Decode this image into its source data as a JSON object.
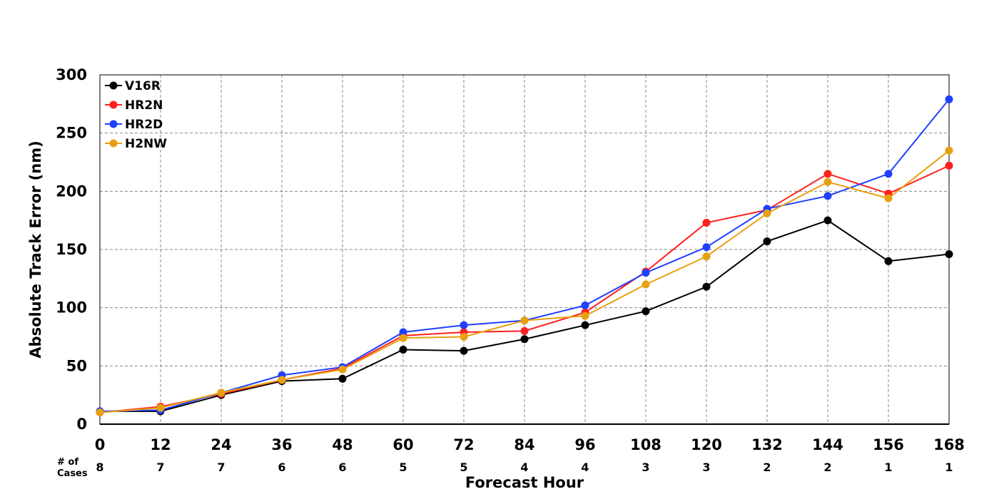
{
  "chart_data": {
    "type": "line",
    "title": "",
    "xlabel": "Forecast Hour",
    "ylabel": "Absolute Track Error (nm)",
    "x": [
      0,
      12,
      24,
      36,
      48,
      60,
      72,
      84,
      96,
      108,
      120,
      132,
      144,
      156,
      168
    ],
    "xlim": [
      0,
      168
    ],
    "ylim": [
      0,
      300
    ],
    "yticks": [
      0,
      50,
      100,
      150,
      200,
      250,
      300
    ],
    "grid": true,
    "legend_position": "top-left",
    "cases_label": "# of Cases",
    "cases": [
      8,
      7,
      7,
      6,
      6,
      5,
      5,
      4,
      4,
      3,
      3,
      2,
      2,
      1,
      1
    ],
    "series": [
      {
        "name": "V16R",
        "color": "#000000",
        "values": [
          11,
          11,
          25,
          37,
          39,
          64,
          63,
          73,
          85,
          97,
          118,
          157,
          175,
          140,
          146
        ]
      },
      {
        "name": "HR2N",
        "color": "#ff2020",
        "values": [
          10,
          15,
          26,
          38,
          48,
          76,
          79,
          80,
          96,
          131,
          173,
          184,
          215,
          198,
          222
        ]
      },
      {
        "name": "HR2D",
        "color": "#2040ff",
        "values": [
          11,
          12,
          27,
          42,
          49,
          79,
          85,
          89,
          102,
          130,
          152,
          185,
          196,
          215,
          279
        ]
      },
      {
        "name": "H2NW",
        "color": "#e8a010",
        "values": [
          10,
          14,
          27,
          38,
          47,
          74,
          75,
          89,
          93,
          120,
          144,
          181,
          208,
          194,
          235
        ]
      }
    ]
  }
}
